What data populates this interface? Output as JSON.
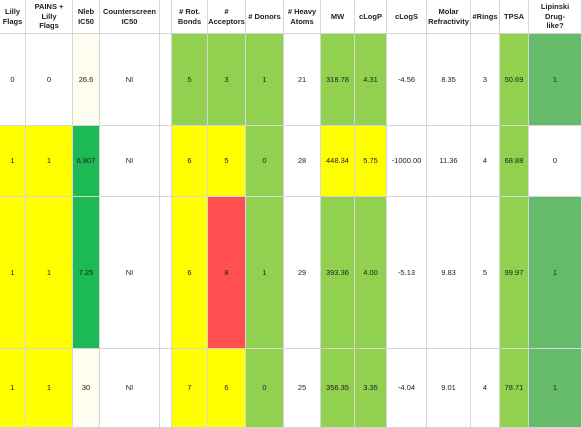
{
  "colors": {
    "white": "#ffffff",
    "cream": "#fffdf0",
    "yellow": "#ffff00",
    "light_green": "#92d050",
    "mid_green": "#66bb6a",
    "dark_green": "#1db954",
    "red": "#ff4f4f"
  },
  "headers": [
    {
      "key": "lilly",
      "label": "Lilly\nFlags"
    },
    {
      "key": "pains",
      "label": "PAINS + Lilly\nFlags"
    },
    {
      "key": "nleb",
      "label": "Nleb\nIC50"
    },
    {
      "key": "counter",
      "label": "Counterscreen\nIC50"
    },
    {
      "key": "rot",
      "label": "# Rot.\nBonds"
    },
    {
      "key": "acc",
      "label": "#\nAcceptors"
    },
    {
      "key": "don",
      "label": "# Donors"
    },
    {
      "key": "heavy",
      "label": "# Heavy\nAtoms"
    },
    {
      "key": "mw",
      "label": "MW"
    },
    {
      "key": "clogp",
      "label": "cLogP"
    },
    {
      "key": "clogs",
      "label": "cLogS"
    },
    {
      "key": "mr",
      "label": "Molar\nRefractivity"
    },
    {
      "key": "rings",
      "label": "#Rings"
    },
    {
      "key": "tpsa",
      "label": "TPSA"
    },
    {
      "key": "lipinski",
      "label": "Lipinski Drug-\nlike?"
    }
  ],
  "rows": [
    {
      "values": [
        "0",
        "0",
        "26.6",
        "NI",
        "5",
        "3",
        "1",
        "21",
        "318.78",
        "4.31",
        "-4.56",
        "8.35",
        "3",
        "50.69",
        "1"
      ],
      "fills": [
        "white",
        "white",
        "cream",
        "white",
        "light_green",
        "light_green",
        "light_green",
        "white",
        "light_green",
        "light_green",
        "white",
        "white",
        "white",
        "light_green",
        "mid_green"
      ]
    },
    {
      "values": [
        "1",
        "1",
        "6.807",
        "NI",
        "6",
        "5",
        "0",
        "28",
        "448.34",
        "5.75",
        "-1000.00",
        "11.36",
        "4",
        "68.88",
        "0"
      ],
      "fills": [
        "yellow",
        "yellow",
        "dark_green",
        "white",
        "yellow",
        "yellow",
        "light_green",
        "white",
        "yellow",
        "yellow",
        "white",
        "white",
        "white",
        "light_green",
        "white"
      ]
    },
    {
      "values": [
        "1",
        "1",
        "7.25",
        "NI",
        "6",
        "8",
        "1",
        "29",
        "393.36",
        "4.00",
        "-5.13",
        "9.83",
        "5",
        "99.97",
        "1"
      ],
      "fills": [
        "yellow",
        "yellow",
        "dark_green",
        "white",
        "yellow",
        "red",
        "light_green",
        "white",
        "light_green",
        "light_green",
        "white",
        "white",
        "white",
        "light_green",
        "mid_green"
      ]
    },
    {
      "values": [
        "1",
        "1",
        "30",
        "NI",
        "7",
        "6",
        "0",
        "25",
        "356.35",
        "3.35",
        "-4.04",
        "9.01",
        "4",
        "78.71",
        "1"
      ],
      "fills": [
        "yellow",
        "yellow",
        "cream",
        "white",
        "yellow",
        "yellow",
        "light_green",
        "white",
        "light_green",
        "light_green",
        "white",
        "white",
        "white",
        "light_green",
        "mid_green"
      ]
    }
  ]
}
